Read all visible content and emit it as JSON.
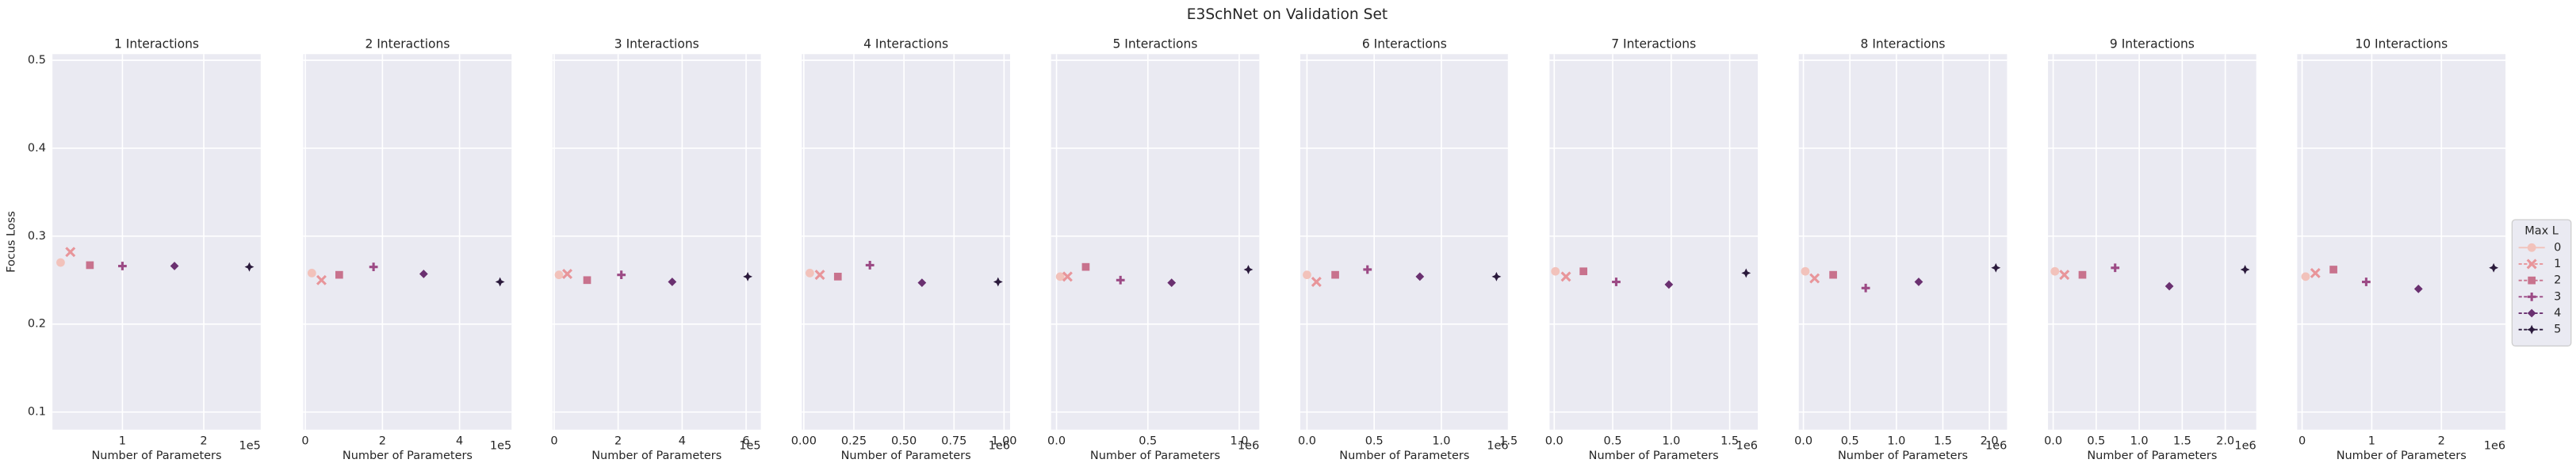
{
  "title": "E3SchNet on Validation Set",
  "legend": {
    "title": "Max L",
    "entries": [
      {
        "name": "0",
        "color": "#f2c2bb",
        "marker": "circle"
      },
      {
        "name": "1",
        "color": "#e8959a",
        "marker": "x"
      },
      {
        "name": "2",
        "color": "#c8728d",
        "marker": "square"
      },
      {
        "name": "3",
        "color": "#9c4a85",
        "marker": "plus"
      },
      {
        "name": "4",
        "color": "#6a3070",
        "marker": "diamond"
      },
      {
        "name": "5",
        "color": "#2b1a3c",
        "marker": "star"
      }
    ]
  },
  "chart_data": [
    {
      "type": "scatter",
      "title": "1 Interactions",
      "x_label": "Number of Parameters",
      "y_label": "Focus Loss",
      "x_offset_label": "1e5",
      "x": [
        0.24,
        0.36,
        0.6,
        1.0,
        1.64,
        2.56
      ],
      "values": [
        0.27,
        0.282,
        0.267,
        0.266,
        0.266,
        0.265
      ],
      "xlim": [
        0.14,
        2.7
      ],
      "xticks": [
        1,
        2
      ],
      "ylim": [
        0.08,
        0.507
      ],
      "yticks": [
        0.1,
        0.2,
        0.3,
        0.4,
        0.5
      ],
      "grid": true
    },
    {
      "type": "scatter",
      "title": "2 Interactions",
      "x_label": "Number of Parameters",
      "x_offset_label": "1e5",
      "x": [
        0.17,
        0.42,
        0.88,
        1.77,
        3.07,
        5.05
      ],
      "values": [
        0.258,
        0.25,
        0.256,
        0.265,
        0.257,
        0.248
      ],
      "xlim": [
        -0.05,
        5.35
      ],
      "xticks": [
        0,
        2,
        4
      ],
      "ylim": [
        0.08,
        0.507
      ],
      "yticks": [
        0.1,
        0.2,
        0.3,
        0.4,
        0.5
      ],
      "grid": true
    },
    {
      "type": "scatter",
      "title": "3 Interactions",
      "x_label": "Number of Parameters",
      "x_offset_label": "1e5",
      "x": [
        0.15,
        0.41,
        1.03,
        2.1,
        3.69,
        6.05
      ],
      "values": [
        0.256,
        0.257,
        0.25,
        0.256,
        0.248,
        0.254
      ],
      "xlim": [
        -0.05,
        6.46
      ],
      "xticks": [
        0,
        2,
        4,
        6
      ],
      "ylim": [
        0.08,
        0.507
      ],
      "yticks": [
        0.1,
        0.2,
        0.3,
        0.4,
        0.5
      ],
      "grid": true
    },
    {
      "type": "scatter",
      "title": "4 Interactions",
      "x_label": "Number of Parameters",
      "x_offset_label": "1e6",
      "x": [
        0.03,
        0.08,
        0.17,
        0.33,
        0.59,
        0.97
      ],
      "values": [
        0.258,
        0.256,
        0.254,
        0.267,
        0.247,
        0.248
      ],
      "xlim": [
        -0.01,
        1.03
      ],
      "xticks": [
        {
          "value": 0,
          "label": "0.00"
        },
        0.25,
        {
          "value": 0.5,
          "label": "0.50"
        },
        0.75,
        {
          "value": 1,
          "label": "1.00"
        }
      ],
      "ylim": [
        0.08,
        0.507
      ],
      "yticks": [
        0.1,
        0.2,
        0.3,
        0.4,
        0.5
      ],
      "grid": true
    },
    {
      "type": "scatter",
      "title": "5 Interactions",
      "x_label": "Number of Parameters",
      "x_offset_label": "1e6",
      "x": [
        0.02,
        0.06,
        0.16,
        0.35,
        0.63,
        1.05
      ],
      "values": [
        0.254,
        0.254,
        0.265,
        0.25,
        0.247,
        0.262
      ],
      "xlim": [
        -0.03,
        1.11
      ],
      "xticks": [
        {
          "value": 0,
          "label": "0.0"
        },
        0.5,
        {
          "value": 1,
          "label": "1.0"
        }
      ],
      "ylim": [
        0.08,
        0.507
      ],
      "yticks": [
        0.1,
        0.2,
        0.3,
        0.4,
        0.5
      ],
      "grid": true
    },
    {
      "type": "scatter",
      "title": "6 Interactions",
      "x_label": "Number of Parameters",
      "x_offset_label": "1e6",
      "x": [
        0.0,
        0.07,
        0.21,
        0.45,
        0.84,
        1.41
      ],
      "values": [
        0.256,
        0.248,
        0.256,
        0.262,
        0.254,
        0.254
      ],
      "xlim": [
        -0.05,
        1.5
      ],
      "xticks": [
        {
          "value": 0,
          "label": "0.0"
        },
        0.5,
        {
          "value": 1,
          "label": "1.0"
        },
        1.5
      ],
      "ylim": [
        0.08,
        0.507
      ],
      "yticks": [
        0.1,
        0.2,
        0.3,
        0.4,
        0.5
      ],
      "grid": true
    },
    {
      "type": "scatter",
      "title": "7 Interactions",
      "x_label": "Number of Parameters",
      "x_offset_label": "1e6",
      "x": [
        0.01,
        0.1,
        0.25,
        0.53,
        0.98,
        1.64
      ],
      "values": [
        0.26,
        0.254,
        0.26,
        0.248,
        0.245,
        0.258
      ],
      "xlim": [
        -0.04,
        1.74
      ],
      "xticks": [
        {
          "value": 0,
          "label": "0.0"
        },
        0.5,
        {
          "value": 1,
          "label": "1.0"
        },
        1.5
      ],
      "ylim": [
        0.08,
        0.507
      ],
      "yticks": [
        0.1,
        0.2,
        0.3,
        0.4,
        0.5
      ],
      "grid": true
    },
    {
      "type": "scatter",
      "title": "8 Interactions",
      "x_label": "Number of Parameters",
      "x_offset_label": "1e6",
      "x": [
        0.02,
        0.12,
        0.32,
        0.67,
        1.24,
        2.07
      ],
      "values": [
        0.26,
        0.252,
        0.256,
        0.241,
        0.248,
        0.264
      ],
      "xlim": [
        -0.05,
        2.19
      ],
      "xticks": [
        {
          "value": 0,
          "label": "0.0"
        },
        0.5,
        {
          "value": 1,
          "label": "1.0"
        },
        1.5,
        {
          "value": 2,
          "label": "2.0"
        }
      ],
      "ylim": [
        0.08,
        0.507
      ],
      "yticks": [
        0.1,
        0.2,
        0.3,
        0.4,
        0.5
      ],
      "grid": true
    },
    {
      "type": "scatter",
      "title": "9 Interactions",
      "x_label": "Number of Parameters",
      "x_offset_label": "1e6",
      "x": [
        0.02,
        0.13,
        0.34,
        0.72,
        1.35,
        2.23
      ],
      "values": [
        0.26,
        0.256,
        0.256,
        0.264,
        0.243,
        0.262
      ],
      "xlim": [
        -0.06,
        2.36
      ],
      "xticks": [
        {
          "value": 0,
          "label": "0.0"
        },
        0.5,
        {
          "value": 1,
          "label": "1.0"
        },
        1.5,
        {
          "value": 2,
          "label": "2.0"
        }
      ],
      "ylim": [
        0.08,
        0.507
      ],
      "yticks": [
        0.1,
        0.2,
        0.3,
        0.4,
        0.5
      ],
      "grid": true
    },
    {
      "type": "scatter",
      "title": "10 Interactions",
      "x_label": "Number of Parameters",
      "x_offset_label": "1e6",
      "x": [
        0.05,
        0.19,
        0.45,
        0.92,
        1.67,
        2.75
      ],
      "values": [
        0.254,
        0.258,
        0.262,
        0.248,
        0.24,
        0.264
      ],
      "xlim": [
        -0.07,
        2.92
      ],
      "xticks": [
        0,
        1,
        2
      ],
      "ylim": [
        0.08,
        0.507
      ],
      "yticks": [
        0.1,
        0.2,
        0.3,
        0.4,
        0.5
      ],
      "grid": true
    }
  ]
}
